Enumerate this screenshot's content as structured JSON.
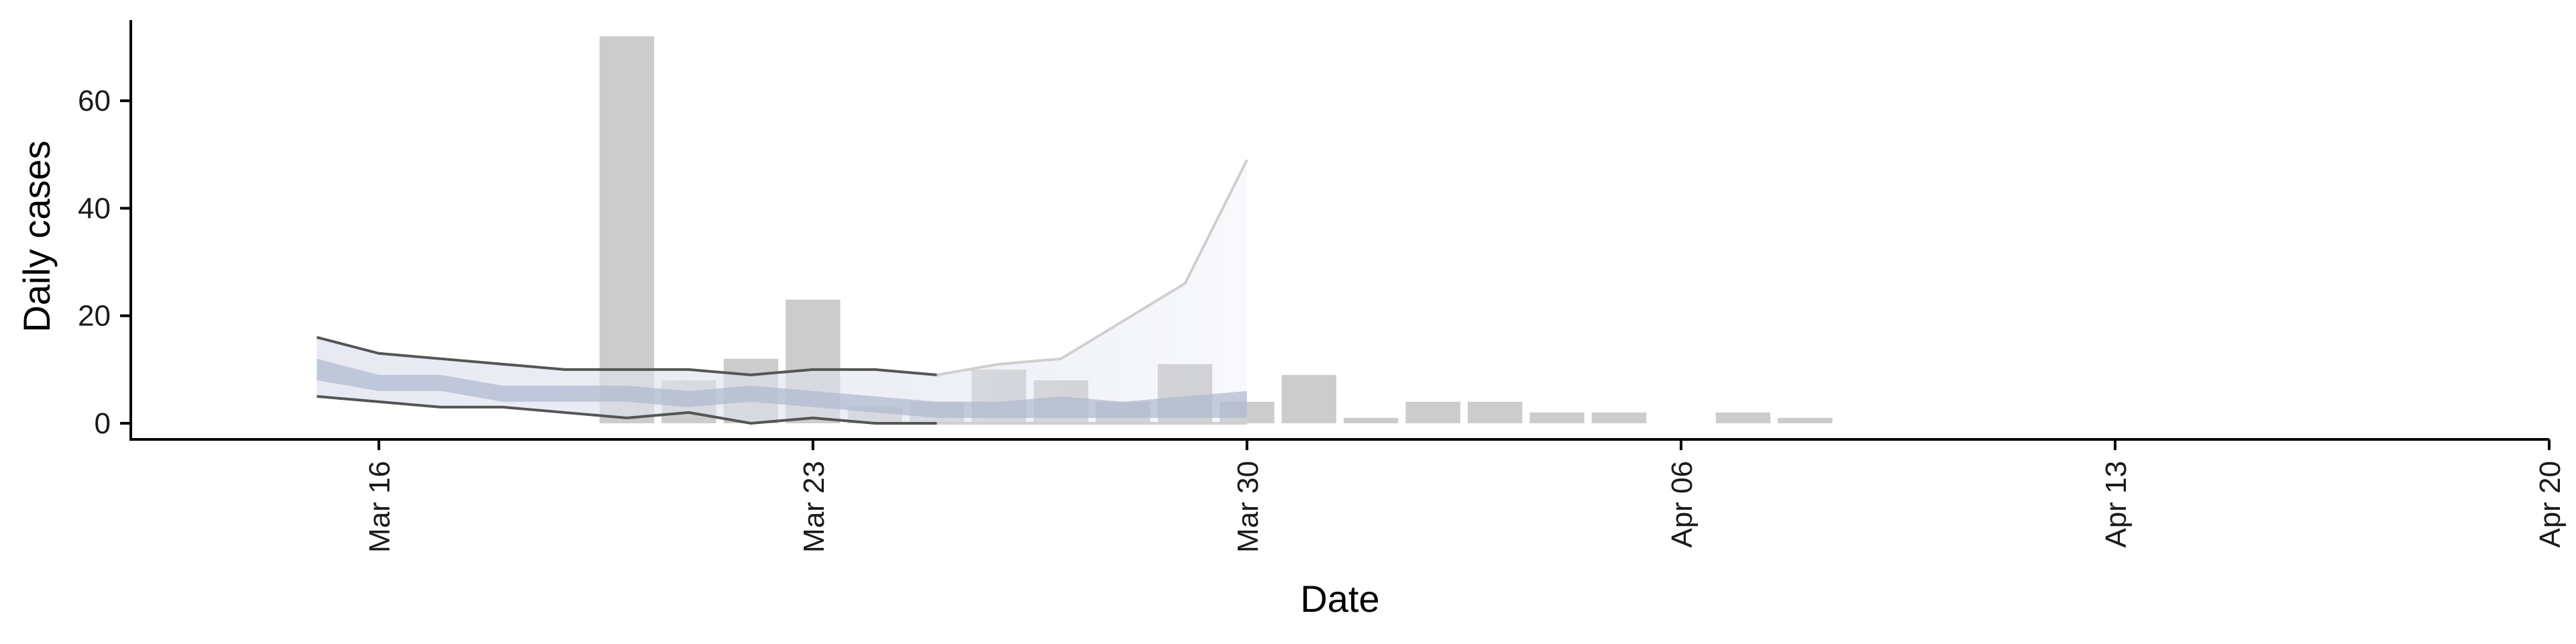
{
  "chart_data": {
    "type": "bar",
    "title": "",
    "xlabel": "Date",
    "ylabel": "Daily cases",
    "x_axis_type": "date",
    "xlim": [
      "2020-03-12",
      "2020-04-20"
    ],
    "ylim": [
      -3,
      75
    ],
    "x_ticks": [
      {
        "date": "2020-03-16",
        "label": "Mar 16"
      },
      {
        "date": "2020-03-23",
        "label": "Mar 23"
      },
      {
        "date": "2020-03-30",
        "label": "Mar 30"
      },
      {
        "date": "2020-04-06",
        "label": "Apr 06"
      },
      {
        "date": "2020-04-13",
        "label": "Apr 13"
      },
      {
        "date": "2020-04-20",
        "label": "Apr 20"
      }
    ],
    "y_ticks": [
      0,
      20,
      40,
      60
    ],
    "grid": false,
    "legend": "none",
    "bars": {
      "name": "Reported daily cases",
      "color": "#cccccc",
      "points": [
        {
          "date": "2020-03-20",
          "value": 72
        },
        {
          "date": "2020-03-21",
          "value": 8
        },
        {
          "date": "2020-03-22",
          "value": 12
        },
        {
          "date": "2020-03-23",
          "value": 23
        },
        {
          "date": "2020-03-24",
          "value": 3
        },
        {
          "date": "2020-03-25",
          "value": 4
        },
        {
          "date": "2020-03-26",
          "value": 10
        },
        {
          "date": "2020-03-27",
          "value": 8
        },
        {
          "date": "2020-03-28",
          "value": 4
        },
        {
          "date": "2020-03-29",
          "value": 11
        },
        {
          "date": "2020-03-30",
          "value": 4
        },
        {
          "date": "2020-03-31",
          "value": 9
        },
        {
          "date": "2020-04-01",
          "value": 1
        },
        {
          "date": "2020-04-02",
          "value": 4
        },
        {
          "date": "2020-04-03",
          "value": 4
        },
        {
          "date": "2020-04-04",
          "value": 2
        },
        {
          "date": "2020-04-05",
          "value": 2
        },
        {
          "date": "2020-04-07",
          "value": 2
        },
        {
          "date": "2020-04-08",
          "value": 1
        }
      ]
    },
    "estimate": {
      "dates": [
        "2020-03-15",
        "2020-03-16",
        "2020-03-17",
        "2020-03-18",
        "2020-03-19",
        "2020-03-20",
        "2020-03-21",
        "2020-03-22",
        "2020-03-23",
        "2020-03-24",
        "2020-03-25",
        "2020-03-26",
        "2020-03-27",
        "2020-03-28",
        "2020-03-29",
        "2020-03-30"
      ],
      "outer_upper": [
        16,
        13,
        12,
        11,
        10,
        10,
        10,
        9,
        10,
        10,
        9,
        11,
        12,
        19,
        26,
        49
      ],
      "outer_lower": [
        5,
        4,
        3,
        3,
        2,
        1,
        2,
        0,
        1,
        0,
        0,
        0,
        0,
        0,
        0,
        0
      ],
      "inner_upper": [
        12,
        9,
        9,
        7,
        7,
        7,
        6,
        7,
        6,
        5,
        4,
        4,
        5,
        4,
        5,
        6
      ],
      "inner_lower": [
        8,
        6,
        6,
        4,
        4,
        4,
        3,
        4,
        3,
        2,
        1,
        1,
        1,
        1,
        1,
        1
      ],
      "colors": {
        "outer_band": "#dfe3ee",
        "inner_band": "#aeb8cf",
        "outline": "#555555",
        "forecast_outline": "#cfcfcf"
      },
      "forecast_start": "2020-03-25"
    }
  }
}
